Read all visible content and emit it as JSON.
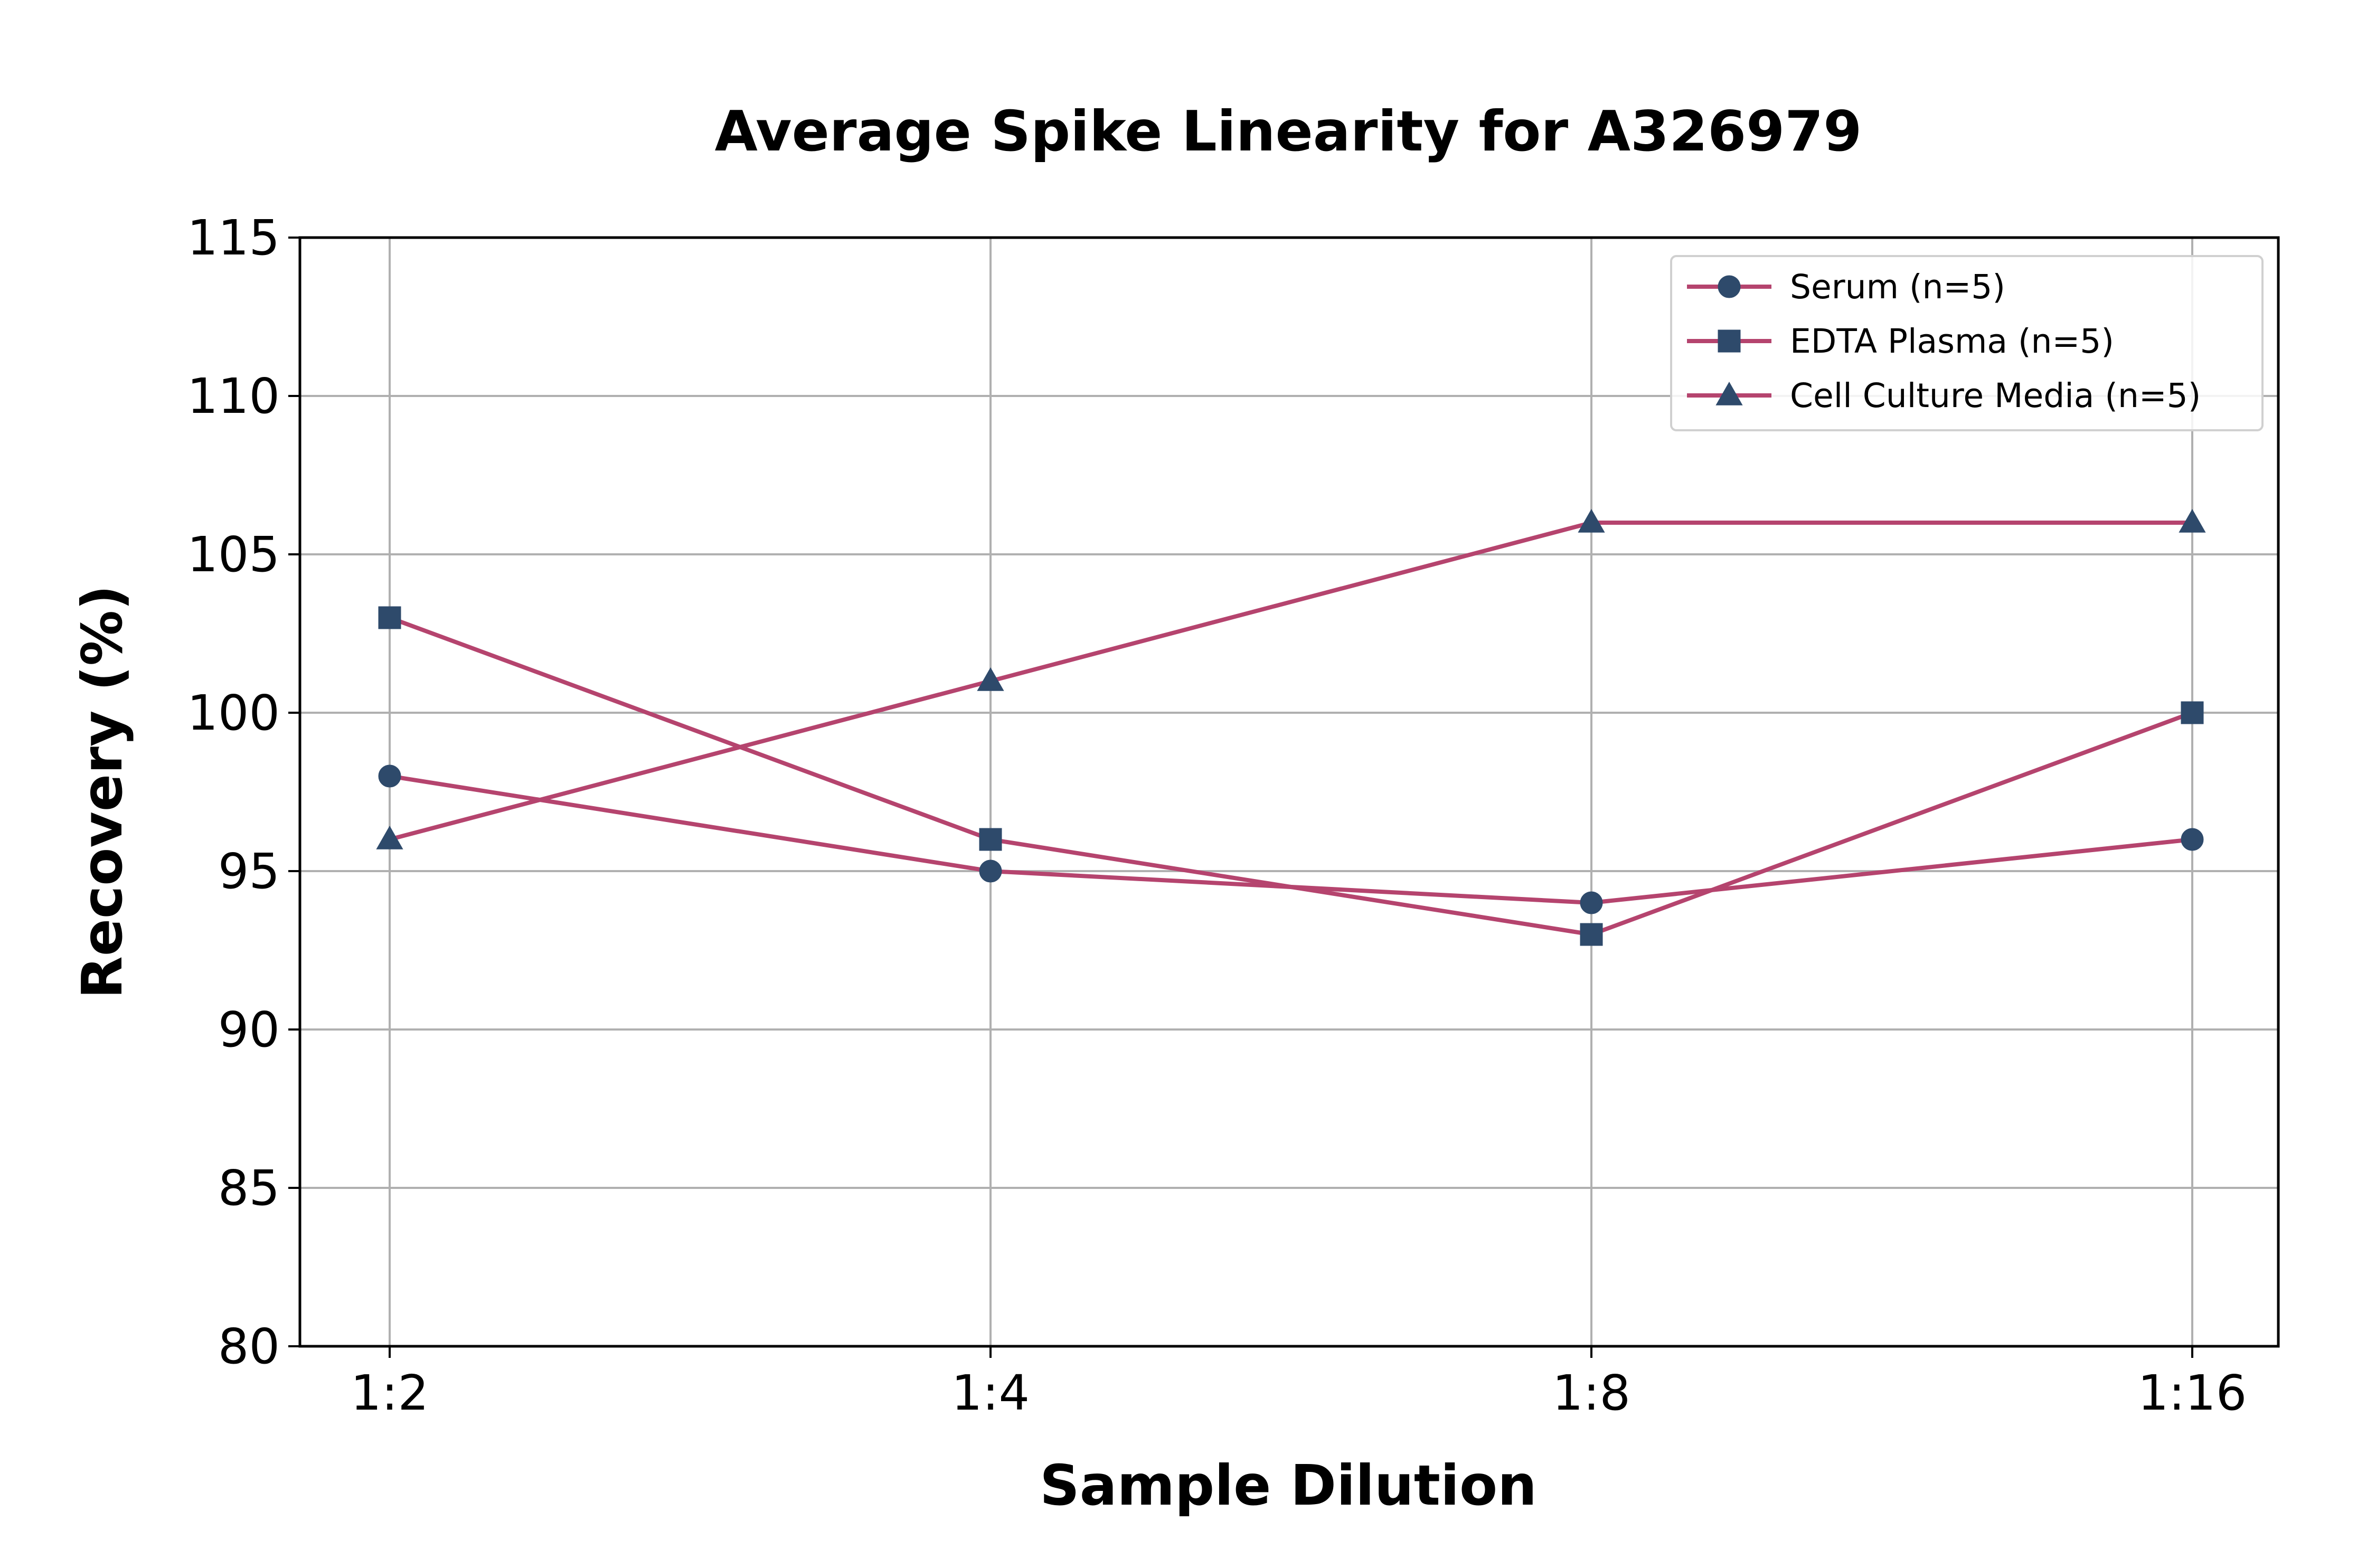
{
  "chart_data": {
    "type": "line",
    "title": "Average Spike Linearity for A326979",
    "xlabel": "Sample Dilution",
    "ylabel": "Recovery (%)",
    "categories": [
      "1:2",
      "1:4",
      "1:8",
      "1:16"
    ],
    "ylim": [
      80,
      115
    ],
    "yticks": [
      "80",
      "85",
      "90",
      "95",
      "100",
      "105",
      "110",
      "115"
    ],
    "grid": true,
    "legend_position": "top-right",
    "series": [
      {
        "name": "Serum (n=5)",
        "marker": "circle",
        "values": [
          98,
          95,
          94,
          96
        ]
      },
      {
        "name": "EDTA Plasma (n=5)",
        "marker": "square",
        "values": [
          103,
          96,
          93,
          100
        ]
      },
      {
        "name": "Cell Culture Media (n=5)",
        "marker": "triangle",
        "values": [
          96,
          101,
          106,
          106
        ]
      }
    ],
    "colors": {
      "line": "#b5446e",
      "marker": "#2e4a6b",
      "grid": "#b0b0b0",
      "axis": "#000000"
    }
  }
}
